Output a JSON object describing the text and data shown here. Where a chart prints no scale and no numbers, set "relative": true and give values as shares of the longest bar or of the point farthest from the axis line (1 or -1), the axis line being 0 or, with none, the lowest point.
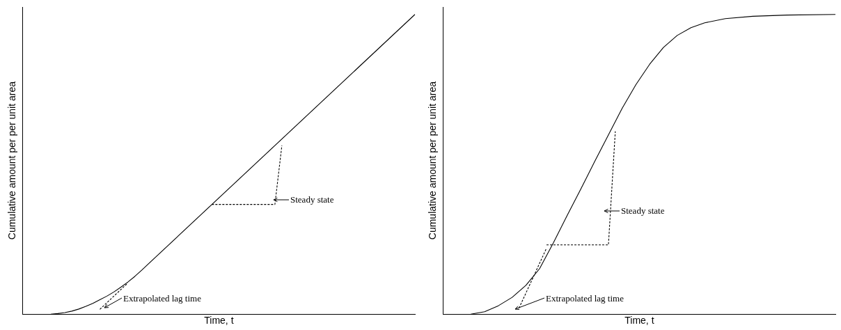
{
  "chart_data": [
    {
      "type": "line",
      "relative": true,
      "xlabel": "Time, t",
      "ylabel": "Cumulative amount per per unit area",
      "categories": [
        null,
        null,
        null,
        null,
        null,
        null,
        null,
        null,
        null,
        null,
        null,
        null,
        null,
        null,
        null,
        null,
        null,
        null,
        null,
        null,
        null,
        null,
        null,
        null,
        null,
        null,
        null,
        null,
        null,
        null,
        null,
        null,
        null,
        null,
        null,
        null,
        null,
        null,
        null,
        null,
        null,
        null,
        null,
        null,
        null,
        null,
        null,
        null,
        null,
        null,
        null,
        null,
        null,
        null,
        null,
        null,
        null
      ],
      "series": [
        {
          "color": "#000000",
          "values": [
            null,
            null,
            null,
            null,
            0,
            0.002,
            0.005,
            0.01,
            0.017,
            0.026,
            0.036,
            0.048,
            0.06,
            0.074,
            0.09,
            0.107,
            0.126,
            0.147,
            0.169,
            null,
            null,
            null,
            null,
            null,
            null,
            null,
            null,
            null,
            null,
            null,
            null,
            null,
            null,
            null,
            null,
            null,
            null,
            null,
            null,
            null,
            null,
            null,
            null,
            null,
            null,
            null,
            null,
            null,
            null,
            null,
            null,
            null,
            null,
            null,
            null,
            null,
            1
          ]
        },
        {
          "color": "#000000",
          "line_style": "dashed",
          "values": [
            null,
            null,
            null,
            null,
            null,
            null,
            null,
            null,
            null,
            null,
            null,
            0.016,
            null,
            null,
            null,
            0.104,
            null,
            null,
            null,
            null,
            null,
            null,
            null,
            null,
            null,
            null,
            null,
            null,
            null,
            null,
            null,
            null,
            null,
            null,
            null,
            null,
            null,
            null,
            null,
            null,
            null,
            null,
            null,
            null,
            null,
            null,
            null,
            null,
            null,
            null,
            null,
            null,
            null,
            null,
            null,
            null,
            null
          ]
        },
        {
          "color": "#000000",
          "line_style": "dashed",
          "values": [
            null,
            null,
            null,
            null,
            null,
            null,
            null,
            null,
            null,
            null,
            null,
            null,
            null,
            null,
            null,
            null,
            null,
            null,
            null,
            null,
            null,
            null,
            null,
            null,
            null,
            null,
            null,
            0.366,
            null,
            null,
            null,
            null,
            null,
            null,
            null,
            null,
            0.366,
            0.563,
            null,
            null,
            null,
            null,
            null,
            null,
            null,
            null,
            null,
            null,
            null,
            null,
            null,
            null,
            null,
            null,
            null,
            null,
            null
          ]
        }
      ],
      "annotations": [
        "Steady state",
        "Extrapolated lag time"
      ]
    },
    {
      "type": "line",
      "relative": true,
      "xlabel": "Time, t",
      "ylabel": "Cumulative amount per per unit area",
      "categories": [
        null,
        null,
        null,
        null,
        null,
        null,
        null,
        null,
        null,
        null,
        null,
        null,
        null,
        null,
        null,
        null,
        null,
        null,
        null,
        null,
        null,
        null,
        null,
        null,
        null,
        null,
        null,
        null,
        null,
        null,
        null,
        null,
        null,
        null,
        null,
        null,
        null,
        null,
        null,
        null,
        null,
        null,
        null,
        null,
        null,
        null,
        null,
        null,
        null,
        null,
        null,
        null,
        null,
        null,
        null,
        null,
        null,
        null
      ],
      "series": [
        {
          "color": "#000000",
          "values": [
            null,
            null,
            null,
            null,
            0,
            null,
            0.008,
            null,
            0.028,
            null,
            0.056,
            null,
            0.096,
            null,
            0.152,
            null,
            0.238,
            null,
            0.329,
            null,
            0.418,
            null,
            0.509,
            null,
            0.598,
            null,
            0.687,
            null,
            0.766,
            null,
            0.834,
            null,
            0.89,
            null,
            0.93,
            null,
            0.956,
            null,
            0.972,
            null,
            null,
            0.986,
            null,
            null,
            null,
            0.994,
            null,
            null,
            null,
            null,
            0.998,
            null,
            null,
            null,
            null,
            null,
            null,
            1
          ]
        },
        {
          "color": "#000000",
          "line_style": "dashed",
          "values": [
            null,
            null,
            null,
            null,
            null,
            null,
            null,
            null,
            null,
            null,
            null,
            0.02,
            null,
            null,
            null,
            0.22,
            null,
            null,
            null,
            null,
            null,
            null,
            null,
            null,
            null,
            null,
            null,
            null,
            null,
            null,
            null,
            null,
            null,
            null,
            null,
            null,
            null,
            null,
            null,
            null,
            null,
            null,
            null,
            null,
            null,
            null,
            null,
            null,
            null,
            null,
            null,
            null,
            null,
            null,
            null,
            null,
            null,
            null
          ]
        },
        {
          "color": "#000000",
          "line_style": "dashed",
          "values": [
            null,
            null,
            null,
            null,
            null,
            null,
            null,
            null,
            null,
            null,
            null,
            null,
            null,
            null,
            null,
            0.231,
            null,
            null,
            null,
            null,
            null,
            null,
            null,
            null,
            0.231,
            0.61,
            null,
            null,
            null,
            null,
            null,
            null,
            null,
            null,
            null,
            null,
            null,
            null,
            null,
            null,
            null,
            null,
            null,
            null,
            null,
            null,
            null,
            null,
            null,
            null,
            null,
            null,
            null,
            null,
            null,
            null,
            null,
            null
          ]
        }
      ],
      "annotations": [
        "Steady state",
        "Extrapolated lag time"
      ]
    }
  ]
}
